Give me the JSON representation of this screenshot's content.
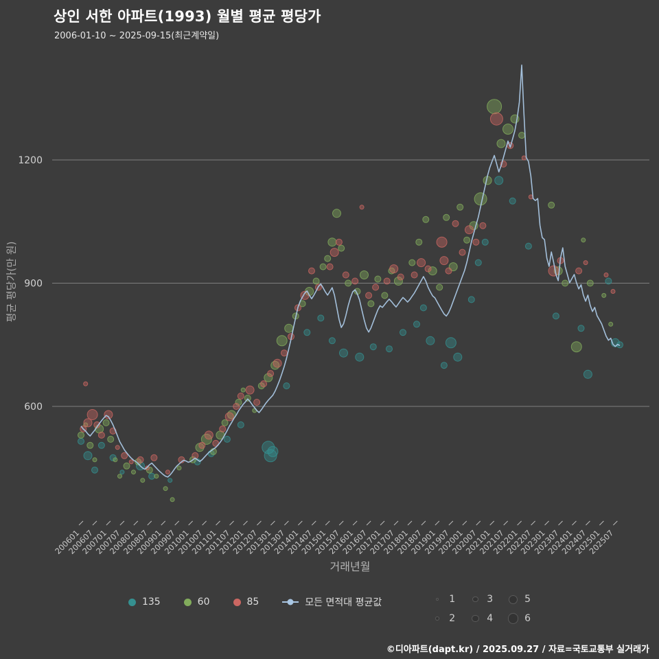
{
  "header": {
    "title": "상인 서한 아파트(1993) 월별 평균 평당가",
    "subtitle": "2006-01-10 ~ 2025-09-15(최근계약일)"
  },
  "chart_data": {
    "type": "scatter+line",
    "xlabel": "거래년월",
    "ylabel": "평균 평당가(만 원)",
    "y_ticks": [
      600,
      900,
      1200
    ],
    "ylim": [
      330,
      1460
    ],
    "x_start": "2006-01",
    "x_tick_step_months": 6,
    "x_tick_labels": [
      "200601",
      "200607",
      "200701",
      "200707",
      "200801",
      "200807",
      "200901",
      "200907",
      "201001",
      "201007",
      "201101",
      "201107",
      "201201",
      "201207",
      "201301",
      "201307",
      "201401",
      "201407",
      "201501",
      "201507",
      "201601",
      "201607",
      "201701",
      "201707",
      "201801",
      "201807",
      "201901",
      "201907",
      "202001",
      "202007",
      "202101",
      "202107",
      "202201",
      "202207",
      "202301",
      "202307",
      "202401",
      "202407",
      "202501",
      "202507"
    ],
    "grid_color": "#909090",
    "background_color": "#3c3c3c",
    "line_series": {
      "name": "모든 면적대 평균값",
      "color": "#a9c6e3",
      "monthly_values": [
        552,
        545,
        540,
        533,
        528,
        535,
        542,
        550,
        558,
        565,
        572,
        578,
        575,
        566,
        555,
        542,
        528,
        514,
        504,
        494,
        487,
        480,
        474,
        469,
        466,
        461,
        455,
        450,
        447,
        452,
        458,
        462,
        456,
        450,
        444,
        439,
        434,
        430,
        428,
        433,
        440,
        448,
        455,
        460,
        465,
        469,
        467,
        464,
        466,
        470,
        474,
        470,
        466,
        470,
        476,
        482,
        488,
        492,
        496,
        500,
        506,
        513,
        521,
        531,
        541,
        552,
        561,
        571,
        579,
        589,
        597,
        605,
        611,
        618,
        612,
        604,
        597,
        590,
        585,
        592,
        600,
        608,
        615,
        621,
        627,
        637,
        650,
        664,
        680,
        697,
        717,
        740,
        764,
        790,
        816,
        841,
        856,
        866,
        876,
        881,
        871,
        862,
        871,
        881,
        892,
        898,
        889,
        879,
        871,
        880,
        889,
        871,
        842,
        812,
        792,
        801,
        821,
        845,
        864,
        879,
        884,
        874,
        859,
        835,
        811,
        791,
        781,
        791,
        806,
        821,
        835,
        845,
        841,
        848,
        855,
        861,
        855,
        848,
        842,
        850,
        858,
        865,
        860,
        854,
        860,
        868,
        876,
        886,
        896,
        906,
        916,
        905,
        890,
        879,
        869,
        864,
        854,
        844,
        834,
        825,
        820,
        828,
        841,
        856,
        871,
        886,
        901,
        916,
        931,
        951,
        976,
        1001,
        1021,
        1041,
        1061,
        1086,
        1111,
        1136,
        1161,
        1181,
        1196,
        1211,
        1191,
        1171,
        1186,
        1206,
        1226,
        1246,
        1231,
        1251,
        1271,
        1301,
        1341,
        1431,
        1311,
        1206,
        1196,
        1161,
        1106,
        1101,
        1106,
        1041,
        1011,
        1006,
        961,
        941,
        976,
        951,
        921,
        906,
        961,
        986,
        941,
        921,
        901,
        911,
        921,
        901,
        886,
        896,
        871,
        856,
        871,
        846,
        831,
        841,
        821,
        811,
        801,
        786,
        771,
        761,
        766,
        751,
        746,
        751,
        748
      ]
    },
    "bubble_series": [
      {
        "name": "135",
        "color": "#359090",
        "points": [
          [
            0,
            515,
            2
          ],
          [
            3,
            480,
            3
          ],
          [
            6,
            445,
            2
          ],
          [
            9,
            505,
            2
          ],
          [
            14,
            475,
            2
          ],
          [
            18,
            440,
            1
          ],
          [
            26,
            455,
            3
          ],
          [
            31,
            430,
            2
          ],
          [
            39,
            420,
            1
          ],
          [
            51,
            465,
            2
          ],
          [
            57,
            485,
            2
          ],
          [
            64,
            520,
            2
          ],
          [
            70,
            555,
            2
          ],
          [
            82,
            500,
            5
          ],
          [
            83,
            480,
            5
          ],
          [
            84,
            490,
            4
          ],
          [
            90,
            650,
            2
          ],
          [
            99,
            780,
            2
          ],
          [
            105,
            815,
            2
          ],
          [
            110,
            760,
            2
          ],
          [
            115,
            730,
            3
          ],
          [
            122,
            720,
            3
          ],
          [
            128,
            745,
            2
          ],
          [
            135,
            740,
            2
          ],
          [
            141,
            780,
            2
          ],
          [
            147,
            800,
            2
          ],
          [
            150,
            840,
            2
          ],
          [
            153,
            760,
            3
          ],
          [
            159,
            700,
            2
          ],
          [
            162,
            755,
            4
          ],
          [
            165,
            720,
            3
          ],
          [
            171,
            860,
            2
          ],
          [
            174,
            950,
            2
          ],
          [
            177,
            1000,
            2
          ],
          [
            183,
            1150,
            3
          ],
          [
            189,
            1100,
            2
          ],
          [
            196,
            990,
            2
          ],
          [
            208,
            820,
            2
          ],
          [
            219,
            790,
            2
          ],
          [
            222,
            678,
            3
          ],
          [
            231,
            905,
            2
          ],
          [
            234,
            755,
            3
          ],
          [
            236,
            750,
            2
          ]
        ]
      },
      {
        "name": "60",
        "color": "#82ac5c",
        "points": [
          [
            0,
            530,
            2
          ],
          [
            2,
            555,
            1
          ],
          [
            4,
            505,
            2
          ],
          [
            6,
            470,
            1
          ],
          [
            8,
            545,
            3
          ],
          [
            11,
            560,
            2
          ],
          [
            13,
            520,
            2
          ],
          [
            15,
            470,
            1
          ],
          [
            17,
            430,
            1
          ],
          [
            20,
            455,
            2
          ],
          [
            23,
            440,
            1
          ],
          [
            25,
            465,
            2
          ],
          [
            27,
            420,
            1
          ],
          [
            30,
            445,
            2
          ],
          [
            33,
            430,
            1
          ],
          [
            37,
            400,
            1
          ],
          [
            40,
            373,
            1
          ],
          [
            43,
            450,
            1
          ],
          [
            49,
            470,
            2
          ],
          [
            52,
            500,
            3
          ],
          [
            55,
            520,
            4
          ],
          [
            58,
            490,
            2
          ],
          [
            61,
            530,
            3
          ],
          [
            63,
            560,
            2
          ],
          [
            66,
            580,
            3
          ],
          [
            69,
            610,
            2
          ],
          [
            71,
            640,
            1
          ],
          [
            73,
            620,
            2
          ],
          [
            76,
            590,
            1
          ],
          [
            79,
            650,
            2
          ],
          [
            82,
            670,
            3
          ],
          [
            85,
            700,
            3
          ],
          [
            88,
            760,
            4
          ],
          [
            91,
            790,
            3
          ],
          [
            94,
            820,
            2
          ],
          [
            97,
            850,
            2
          ],
          [
            100,
            880,
            3
          ],
          [
            103,
            905,
            2
          ],
          [
            106,
            940,
            2
          ],
          [
            108,
            960,
            2
          ],
          [
            110,
            1000,
            3
          ],
          [
            112,
            1070,
            3
          ],
          [
            114,
            985,
            2
          ],
          [
            117,
            900,
            2
          ],
          [
            121,
            880,
            2
          ],
          [
            124,
            920,
            3
          ],
          [
            127,
            850,
            2
          ],
          [
            130,
            910,
            2
          ],
          [
            133,
            870,
            2
          ],
          [
            136,
            930,
            2
          ],
          [
            139,
            905,
            3
          ],
          [
            145,
            950,
            2
          ],
          [
            148,
            1000,
            2
          ],
          [
            151,
            1055,
            2
          ],
          [
            154,
            930,
            3
          ],
          [
            157,
            890,
            2
          ],
          [
            160,
            1060,
            2
          ],
          [
            163,
            940,
            3
          ],
          [
            166,
            1085,
            2
          ],
          [
            169,
            1005,
            2
          ],
          [
            172,
            1040,
            3
          ],
          [
            175,
            1105,
            5
          ],
          [
            178,
            1150,
            3
          ],
          [
            181,
            1330,
            6
          ],
          [
            184,
            1240,
            3
          ],
          [
            187,
            1275,
            4
          ],
          [
            190,
            1300,
            3
          ],
          [
            193,
            1260,
            2
          ],
          [
            206,
            1090,
            2
          ],
          [
            209,
            930,
            3
          ],
          [
            212,
            900,
            2
          ],
          [
            217,
            745,
            4
          ],
          [
            220,
            1005,
            1
          ],
          [
            223,
            900,
            2
          ],
          [
            229,
            870,
            1
          ],
          [
            232,
            800,
            1
          ]
        ]
      },
      {
        "name": "85",
        "color": "#cb6762",
        "points": [
          [
            1,
            545,
            2
          ],
          [
            2,
            655,
            1
          ],
          [
            3,
            560,
            3
          ],
          [
            5,
            580,
            4
          ],
          [
            7,
            555,
            2
          ],
          [
            9,
            530,
            2
          ],
          [
            12,
            580,
            3
          ],
          [
            14,
            540,
            2
          ],
          [
            16,
            500,
            1
          ],
          [
            19,
            480,
            2
          ],
          [
            22,
            465,
            1
          ],
          [
            26,
            470,
            2
          ],
          [
            29,
            450,
            1
          ],
          [
            32,
            475,
            2
          ],
          [
            38,
            440,
            1
          ],
          [
            44,
            470,
            2
          ],
          [
            50,
            480,
            2
          ],
          [
            53,
            505,
            2
          ],
          [
            56,
            530,
            3
          ],
          [
            59,
            510,
            2
          ],
          [
            62,
            545,
            2
          ],
          [
            65,
            575,
            3
          ],
          [
            68,
            600,
            2
          ],
          [
            70,
            625,
            2
          ],
          [
            74,
            640,
            3
          ],
          [
            77,
            610,
            2
          ],
          [
            80,
            655,
            2
          ],
          [
            83,
            680,
            2
          ],
          [
            86,
            705,
            3
          ],
          [
            89,
            730,
            2
          ],
          [
            92,
            770,
            2
          ],
          [
            95,
            840,
            2
          ],
          [
            98,
            870,
            3
          ],
          [
            101,
            930,
            2
          ],
          [
            104,
            890,
            2
          ],
          [
            109,
            940,
            2
          ],
          [
            111,
            975,
            3
          ],
          [
            113,
            1000,
            2
          ],
          [
            116,
            920,
            2
          ],
          [
            120,
            905,
            2
          ],
          [
            123,
            1085,
            1
          ],
          [
            126,
            870,
            2
          ],
          [
            129,
            890,
            2
          ],
          [
            134,
            905,
            2
          ],
          [
            137,
            935,
            3
          ],
          [
            140,
            915,
            2
          ],
          [
            146,
            920,
            2
          ],
          [
            149,
            950,
            3
          ],
          [
            152,
            935,
            2
          ],
          [
            158,
            1000,
            4
          ],
          [
            159,
            955,
            3
          ],
          [
            161,
            930,
            2
          ],
          [
            164,
            1045,
            2
          ],
          [
            167,
            975,
            2
          ],
          [
            170,
            1030,
            3
          ],
          [
            173,
            1000,
            2
          ],
          [
            176,
            1040,
            2
          ],
          [
            182,
            1300,
            5
          ],
          [
            185,
            1190,
            2
          ],
          [
            188,
            1235,
            2
          ],
          [
            194,
            1205,
            1
          ],
          [
            197,
            1110,
            1
          ],
          [
            207,
            930,
            4
          ],
          [
            210,
            955,
            2
          ],
          [
            218,
            930,
            2
          ],
          [
            221,
            950,
            1
          ],
          [
            230,
            920,
            1
          ],
          [
            233,
            880,
            1
          ]
        ]
      }
    ]
  },
  "legend": {
    "series": [
      {
        "key": "135",
        "label": "135",
        "color": "#359090",
        "type": "dot"
      },
      {
        "key": "60",
        "label": "60",
        "color": "#82ac5c",
        "type": "dot"
      },
      {
        "key": "85",
        "label": "85",
        "color": "#cb6762",
        "type": "dot"
      },
      {
        "key": "avg",
        "label": "모든 면적대 평균값",
        "color": "#a9c6e3",
        "type": "line-dot"
      }
    ],
    "sizes": [
      1,
      2,
      3,
      4,
      5,
      6
    ]
  },
  "footer": {
    "credit": "©디아파트(dapt.kr) / 2025.09.27 / 자료=국토교통부 실거래가"
  }
}
